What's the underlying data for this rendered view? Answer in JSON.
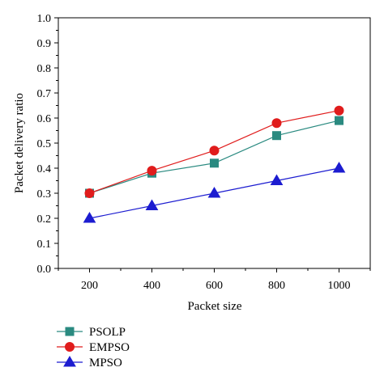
{
  "chart_data": {
    "type": "line",
    "xlabel": "Packet size",
    "ylabel": "Packet delivery ratio",
    "x": [
      200,
      400,
      600,
      800,
      1000
    ],
    "x_ticks": [
      "200",
      "400",
      "600",
      "800",
      "1000"
    ],
    "xlim": [
      100,
      1100
    ],
    "ylim": [
      0.0,
      1.0
    ],
    "y_ticks": [
      "0.0",
      "0.1",
      "0.2",
      "0.3",
      "0.4",
      "0.5",
      "0.6",
      "0.7",
      "0.8",
      "0.9",
      "1.0"
    ],
    "grid": false,
    "legend_position": "bottom-left",
    "series": [
      {
        "name": "PSOLP",
        "values": [
          0.3,
          0.38,
          0.42,
          0.53,
          0.59
        ],
        "color": "#2a8a80",
        "marker": "square"
      },
      {
        "name": "EMPSO",
        "values": [
          0.3,
          0.39,
          0.47,
          0.58,
          0.63
        ],
        "color": "#e01c1c",
        "marker": "circle"
      },
      {
        "name": "MPSO",
        "values": [
          0.2,
          0.25,
          0.3,
          0.35,
          0.4
        ],
        "color": "#1c1cd0",
        "marker": "triangle"
      }
    ]
  }
}
